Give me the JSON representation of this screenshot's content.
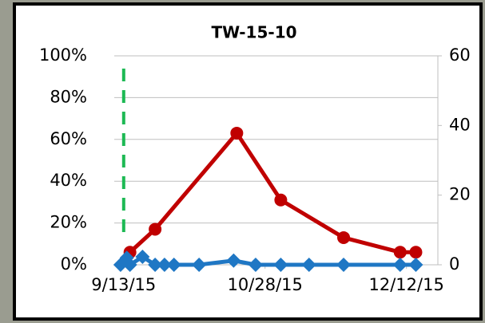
{
  "chart_data": {
    "type": "line",
    "title": "TW-15-10",
    "xlim": [
      "2015-09-10",
      "2015-12-22"
    ],
    "xticks": [
      {
        "value": "2015-09-13",
        "label": "9/13/15"
      },
      {
        "value": "2015-10-28",
        "label": "10/28/15"
      },
      {
        "value": "2015-12-12",
        "label": "12/12/15"
      }
    ],
    "ylim": [
      0,
      100
    ],
    "yticks": [
      {
        "value": 0,
        "label": "0%"
      },
      {
        "value": 20,
        "label": "20%"
      },
      {
        "value": 40,
        "label": "40%"
      },
      {
        "value": 60,
        "label": "60%"
      },
      {
        "value": 80,
        "label": "80%"
      },
      {
        "value": 100,
        "label": "100%"
      }
    ],
    "y2lim": [
      0,
      60
    ],
    "y2ticks": [
      0,
      20,
      40,
      60
    ],
    "grid": true,
    "vline": {
      "x": "2015-09-13",
      "color": "#1db954"
    },
    "series": [
      {
        "color": "#c00000",
        "marker": "circle",
        "x": [
          "2015-09-15",
          "2015-09-23",
          "2015-10-19",
          "2015-11-02",
          "2015-11-22",
          "2015-12-10",
          "2015-12-15"
        ],
        "values": [
          6,
          17,
          63,
          31,
          13,
          6,
          6
        ]
      },
      {
        "color": "#1f77c4",
        "marker": "diamond",
        "axis": "y2",
        "x": [
          "2015-09-12",
          "2015-09-14",
          "2015-09-15",
          "2015-09-19",
          "2015-09-23",
          "2015-09-26",
          "2015-09-29",
          "2015-10-07",
          "2015-10-18",
          "2015-10-25",
          "2015-11-02",
          "2015-11-11",
          "2015-11-22",
          "2015-12-10",
          "2015-12-15"
        ],
        "values": [
          0,
          2,
          0,
          2.3,
          0,
          0,
          0,
          0,
          1.2,
          0,
          0,
          0,
          0,
          0,
          0
        ]
      }
    ]
  }
}
